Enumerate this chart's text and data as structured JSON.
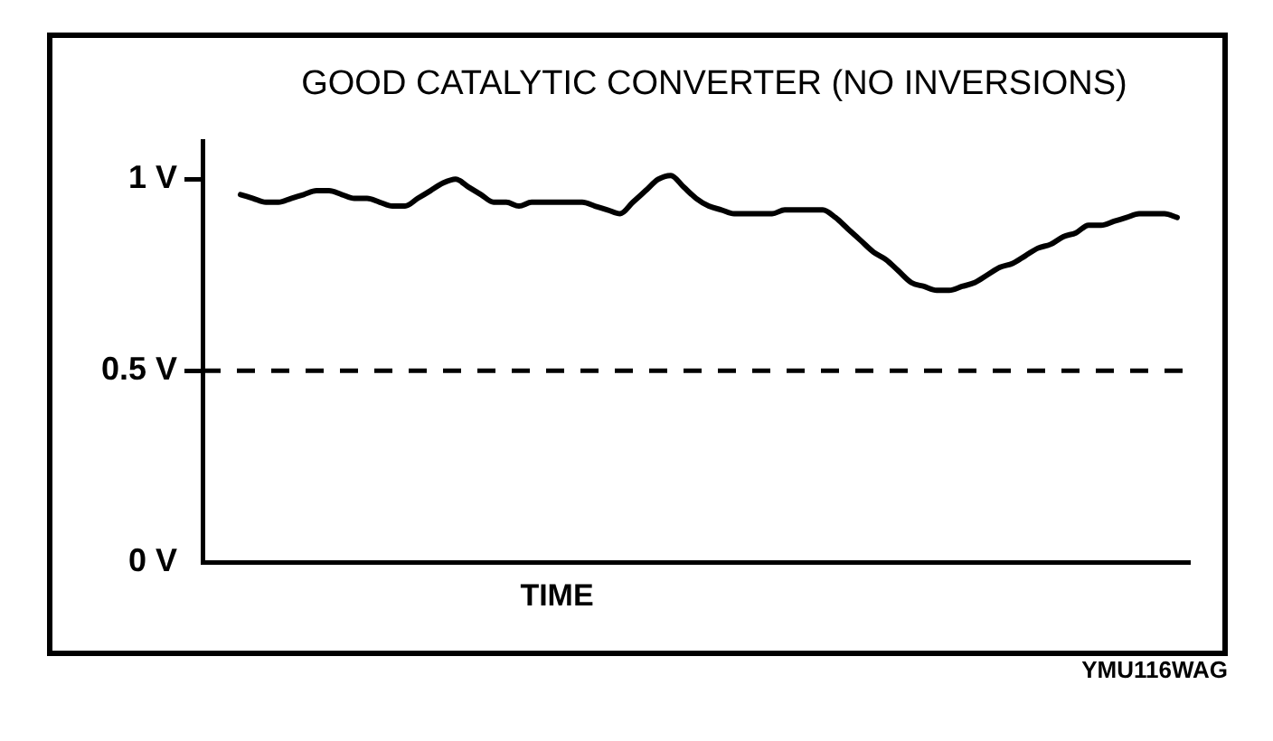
{
  "chart_data": {
    "type": "line",
    "title": "GOOD CATALYTIC CONVERTER (NO INVERSIONS)",
    "xlabel": "TIME",
    "annotations": [
      "YMU116WAG"
    ],
    "categories": [
      null,
      null,
      null,
      null,
      null,
      null,
      null,
      null,
      null,
      null,
      null,
      null,
      null,
      null,
      null,
      null,
      null,
      null,
      null,
      null,
      null,
      null,
      null,
      null,
      null,
      null,
      null,
      null,
      null,
      null,
      null,
      null,
      null,
      null,
      null,
      null,
      null,
      null,
      null,
      null,
      null,
      null,
      null,
      null,
      null,
      null,
      null,
      null,
      null,
      null,
      null,
      null,
      null,
      null,
      null,
      null,
      null,
      null,
      null,
      null,
      null,
      null,
      null,
      null,
      null,
      null,
      null,
      null,
      null,
      null,
      null,
      null,
      null,
      null,
      null,
      null,
      null,
      null,
      null
    ],
    "series": [
      {
        "color": "#000000",
        "values": [
          null,
          null,
          null,
          0.96,
          0.95,
          0.94,
          0.94,
          0.95,
          0.96,
          0.97,
          0.97,
          0.96,
          0.95,
          0.95,
          0.94,
          0.93,
          0.93,
          0.95,
          0.97,
          0.99,
          1.0,
          0.98,
          0.96,
          0.94,
          0.94,
          0.93,
          0.94,
          0.94,
          0.94,
          0.94,
          0.94,
          0.93,
          0.92,
          0.91,
          0.94,
          0.97,
          1.0,
          1.01,
          0.98,
          0.95,
          0.93,
          0.92,
          0.91,
          0.91,
          0.91,
          0.91,
          0.92,
          0.92,
          0.92,
          0.92,
          0.9,
          0.87,
          0.84,
          0.81,
          0.79,
          0.76,
          0.73,
          0.72,
          0.71,
          0.71,
          0.72,
          0.73,
          0.75,
          0.77,
          0.78,
          0.8,
          0.82,
          0.83,
          0.85,
          0.86,
          0.88,
          0.88,
          0.89,
          0.9,
          0.91,
          0.91,
          0.91,
          0.9,
          null
        ]
      }
    ],
    "ylim": [
      0,
      1.1
    ],
    "yticks": [
      {
        "value": 0,
        "label": "0 V"
      },
      {
        "value": 0.5,
        "label": "0.5 V"
      },
      {
        "value": 1,
        "label": "1 V"
      }
    ],
    "ref_lines": [
      {
        "axis": "y",
        "value": 0.5,
        "color": "#000000",
        "line_style": "dashed"
      }
    ],
    "marker": "none"
  }
}
